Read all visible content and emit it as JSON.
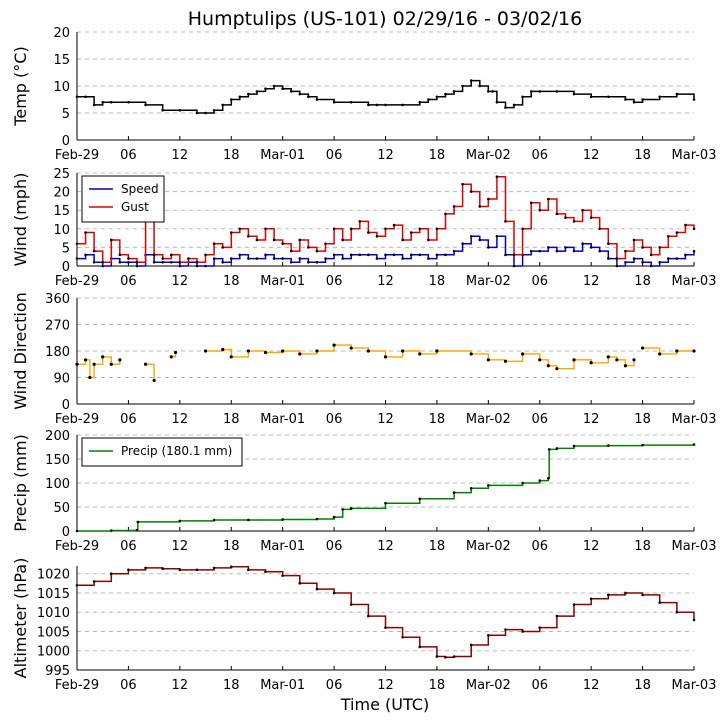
{
  "chart_data": {
    "type": "line",
    "title": "Humptulips (US-101) 02/29/16 - 03/02/16",
    "xlabel": "Time (UTC)",
    "x_tick_labels": [
      "Feb-29",
      "06",
      "12",
      "18",
      "Mar-01",
      "06",
      "12",
      "18",
      "Mar-02",
      "06",
      "12",
      "18",
      "Mar-03"
    ],
    "x_tick_hours": [
      0,
      6,
      12,
      18,
      24,
      30,
      36,
      42,
      48,
      54,
      60,
      66,
      72
    ],
    "x_range_hours": [
      0,
      72
    ],
    "panels": [
      {
        "id": "temp",
        "ylabel": "Temp ($^\\circ$C)",
        "ylabel_text": "Temp (°C)",
        "ylim": [
          0,
          20
        ],
        "yticks": [
          0,
          5,
          10,
          15,
          20
        ],
        "grid": true,
        "series": [
          {
            "name": "Temp",
            "color": "#000000",
            "x": [
              0,
              1,
              2,
              3,
              4,
              6,
              8,
              10,
              12,
              14,
              15,
              16,
              17,
              18,
              19,
              20,
              21,
              22,
              23,
              24,
              25,
              26,
              27,
              28,
              30,
              32,
              34,
              35,
              36,
              38,
              40,
              41,
              42,
              43,
              44,
              45,
              46,
              47,
              48,
              48.5,
              49,
              50,
              51,
              52,
              53,
              54,
              56,
              58,
              60,
              62,
              64,
              65,
              66,
              68,
              70,
              72
            ],
            "values": [
              8,
              8,
              6.5,
              7,
              7,
              7,
              6.5,
              5.5,
              5.5,
              5,
              5,
              5.5,
              6.5,
              7.5,
              8,
              8.5,
              9,
              9.5,
              10,
              9.5,
              9,
              8.5,
              8,
              7.5,
              7,
              7,
              6.5,
              6.5,
              6.5,
              6.5,
              7,
              7.5,
              8,
              8.5,
              9,
              10,
              11,
              10,
              9,
              9,
              7,
              6,
              6.5,
              8,
              9,
              9,
              9,
              8.5,
              8,
              8,
              7.5,
              7,
              7.5,
              8,
              8.5,
              7.5
            ]
          }
        ]
      },
      {
        "id": "wind",
        "ylabel": "Wind (mph)",
        "ylim": [
          0,
          25
        ],
        "yticks": [
          0,
          5,
          10,
          15,
          20,
          25
        ],
        "grid": true,
        "legend": {
          "placement": "top-left",
          "entries": [
            "Speed",
            "Gust"
          ]
        },
        "series": [
          {
            "name": "Speed",
            "color": "#0000cc",
            "x": [
              0,
              1,
              2,
              3,
              4,
              5,
              6,
              7,
              8,
              9,
              10,
              11,
              12,
              13,
              14,
              15,
              16,
              17,
              18,
              19,
              20,
              21,
              22,
              23,
              24,
              25,
              26,
              27,
              28,
              29,
              30,
              31,
              32,
              33,
              34,
              35,
              36,
              37,
              38,
              39,
              40,
              41,
              42,
              43,
              44,
              45,
              46,
              47,
              48,
              49,
              50,
              51,
              52,
              53,
              54,
              55,
              56,
              57,
              58,
              59,
              60,
              61,
              62,
              63,
              64,
              65,
              66,
              67,
              68,
              69,
              70,
              71,
              72
            ],
            "values": [
              2,
              3,
              1,
              0,
              2,
              1,
              1,
              0,
              3,
              1,
              1,
              1,
              0,
              1,
              0,
              0,
              2,
              1,
              2,
              3,
              2,
              2,
              3,
              2,
              2,
              1,
              2,
              1,
              1,
              2,
              3,
              2,
              3,
              3,
              3,
              2,
              3,
              3,
              2,
              3,
              3,
              2,
              3,
              3,
              4,
              6,
              8,
              7,
              5,
              8,
              3,
              0,
              3,
              4,
              4,
              5,
              4,
              5,
              4,
              6,
              5,
              4,
              2,
              0,
              1,
              2,
              1,
              0,
              1,
              2,
              2,
              3,
              4
            ]
          },
          {
            "name": "Gust",
            "color": "#dd0000",
            "x": [
              0,
              1,
              2,
              3,
              4,
              5,
              6,
              7,
              8,
              9,
              10,
              11,
              12,
              13,
              14,
              15,
              16,
              17,
              18,
              19,
              20,
              21,
              22,
              23,
              24,
              25,
              26,
              27,
              28,
              29,
              30,
              31,
              32,
              33,
              34,
              35,
              36,
              37,
              38,
              39,
              40,
              41,
              42,
              43,
              44,
              45,
              46,
              47,
              48,
              49,
              50,
              51,
              52,
              53,
              54,
              55,
              56,
              57,
              58,
              59,
              60,
              61,
              62,
              63,
              64,
              65,
              66,
              67,
              68,
              69,
              70,
              71,
              72
            ],
            "values": [
              6,
              9,
              4,
              1,
              7,
              3,
              2,
              1,
              13,
              3,
              2,
              3,
              1,
              2,
              1,
              3,
              6,
              5,
              9,
              10,
              8,
              7,
              10,
              7,
              6,
              4,
              7,
              5,
              4,
              6,
              10,
              7,
              10,
              12,
              9,
              8,
              10,
              11,
              7,
              9,
              10,
              7,
              10,
              14,
              16,
              22,
              20,
              16,
              18,
              24,
              12,
              3,
              10,
              17,
              15,
              18,
              14,
              13,
              12,
              15,
              13,
              10,
              6,
              2,
              4,
              7,
              5,
              3,
              5,
              8,
              9,
              11,
              10
            ]
          }
        ]
      },
      {
        "id": "wdir",
        "ylabel": "Wind Direction",
        "ylim": [
          0,
          360
        ],
        "yticks": [
          0,
          90,
          180,
          270,
          360
        ],
        "grid": true,
        "series": [
          {
            "name": "Wind Direction",
            "color": "#ffa500",
            "style": "segments",
            "segments": [
              {
                "x": [
                  0,
                  1,
                  1.5,
                  2,
                  3,
                  4,
                  5
                ],
                "values": [
                  135,
                  150,
                  90,
                  135,
                  160,
                  135,
                  150
                ]
              },
              {
                "x": [
                  8,
                  9
                ],
                "values": [
                  135,
                  80
                ]
              },
              {
                "x": [
                  11,
                  11.5
                ],
                "values": [
                  160,
                  175
                ]
              },
              {
                "x": [
                  15,
                  17,
                  18,
                  20,
                  22,
                  24,
                  26,
                  28,
                  30,
                  32,
                  34,
                  36,
                  38,
                  40,
                  42
                ],
                "values": [
                  180,
                  185,
                  160,
                  180,
                  175,
                  180,
                  170,
                  180,
                  200,
                  190,
                  180,
                  160,
                  180,
                  170,
                  180
                ]
              },
              {
                "x": [
                  42,
                  46,
                  48,
                  50,
                  52,
                  54,
                  55,
                  56,
                  58,
                  60,
                  62,
                  63,
                  64,
                  65
                ],
                "values": [
                  180,
                  170,
                  150,
                  145,
                  170,
                  150,
                  130,
                  120,
                  150,
                  140,
                  160,
                  150,
                  130,
                  150
                ]
              },
              {
                "x": [
                  66,
                  68,
                  70,
                  72
                ],
                "values": [
                  190,
                  170,
                  180,
                  180
                ]
              }
            ]
          }
        ]
      },
      {
        "id": "precip",
        "ylabel": "Precip (mm)",
        "ylim": [
          0,
          200
        ],
        "yticks": [
          0,
          50,
          100,
          150,
          200
        ],
        "grid": true,
        "legend": {
          "placement": "top-left",
          "entries": [
            "Precip (180.1 mm)"
          ]
        },
        "series": [
          {
            "name": "Precip (180.1 mm)",
            "color": "#008000",
            "x": [
              0,
              4,
              7,
              7.1,
              12,
              16,
              20,
              24,
              28,
              30,
              31,
              32,
              36,
              40,
              44,
              46,
              48,
              52,
              54,
              55,
              55.1,
              56,
              58,
              62,
              66,
              72
            ],
            "values": [
              0,
              1,
              2,
              19,
              21,
              23,
              23,
              24,
              25,
              29,
              45,
              47,
              58,
              67,
              80,
              89,
              95,
              100,
              105,
              110,
              170,
              172,
              177,
              178,
              179,
              180.1
            ]
          }
        ]
      },
      {
        "id": "alt",
        "ylabel": "Altimeter (hPa)",
        "ylim": [
          995,
          1022
        ],
        "yticks": [
          995,
          1000,
          1005,
          1010,
          1015,
          1020
        ],
        "grid": true,
        "series": [
          {
            "name": "Altimeter",
            "color": "#8b0000",
            "x": [
              0,
              2,
              4,
              6,
              8,
              10,
              12,
              14,
              16,
              18,
              20,
              22,
              24,
              26,
              28,
              30,
              32,
              34,
              36,
              38,
              40,
              42,
              43,
              44,
              46,
              48,
              50,
              52,
              54,
              56,
              58,
              60,
              62,
              64,
              66,
              68,
              70,
              72
            ],
            "values": [
              1017,
              1018,
              1020,
              1021,
              1021.5,
              1021.3,
              1021,
              1021,
              1021.5,
              1021.8,
              1021,
              1020.5,
              1019.5,
              1017.5,
              1016,
              1015,
              1012,
              1009,
              1006,
              1003.5,
              1001,
              998.5,
              998.3,
              998.5,
              1001.5,
              1004,
              1005.5,
              1005,
              1006,
              1009,
              1012,
              1013.5,
              1014.5,
              1015,
              1014.5,
              1012.5,
              1010,
              1008
            ]
          }
        ]
      }
    ]
  }
}
